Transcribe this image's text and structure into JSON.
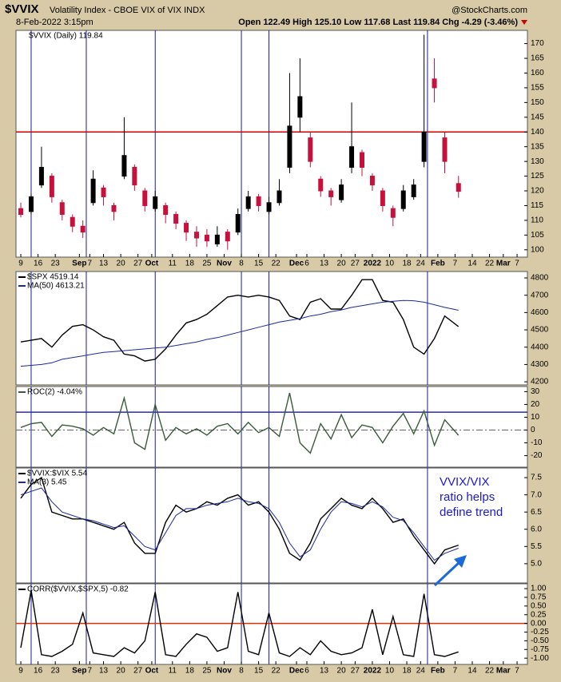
{
  "header": {
    "symbol": "$VVIX",
    "name": "Volatility Index - CBOE VIX of VIX  INDX",
    "source": "@StockCharts.com",
    "date": "8-Feb-2022 3:15pm",
    "quote": "Open 122.49  High 125.10  Low 117.68  Last 119.84  Chg -4.29 (-3.46%)"
  },
  "chart_data": [
    {
      "type": "candlestick",
      "label": "$VVIX (Daily) 119.84",
      "up_color": "#000000",
      "down_color": "#c8103c",
      "x": [
        0,
        3,
        6,
        9,
        12,
        15,
        18,
        21,
        24,
        27,
        30,
        33,
        36,
        39,
        42,
        45,
        48,
        51,
        54,
        57,
        60,
        63,
        66,
        69,
        72,
        75,
        78,
        81,
        84,
        87,
        90,
        93,
        96,
        99,
        102,
        105,
        108,
        111,
        114,
        117,
        120,
        123,
        127
      ],
      "open": [
        114,
        113,
        122,
        125,
        116,
        111,
        108,
        116,
        121,
        115,
        125,
        128,
        120,
        114,
        115,
        112,
        109,
        106,
        105,
        102,
        106,
        106,
        114,
        118,
        113,
        116,
        128,
        145,
        138,
        124,
        120,
        117,
        128,
        133,
        125,
        120,
        114,
        114,
        118,
        130,
        158,
        138,
        122.49
      ],
      "high": [
        116,
        119,
        135,
        126,
        117,
        112,
        110,
        127,
        122,
        116,
        145,
        129,
        121,
        120,
        116,
        113,
        110,
        108,
        107,
        108,
        107,
        114,
        120,
        119,
        118,
        124,
        160,
        165,
        140,
        125,
        121,
        124,
        150,
        134,
        126,
        121,
        115,
        122,
        124,
        173,
        165,
        140,
        125.1
      ],
      "low": [
        111,
        112,
        121,
        116,
        110,
        106,
        104,
        115,
        115,
        110,
        124,
        120,
        113,
        113,
        109,
        107,
        103,
        101,
        101,
        101,
        100,
        105,
        113,
        113,
        112,
        115,
        126,
        140,
        128,
        118,
        115,
        116,
        126,
        125,
        120,
        113,
        108,
        113,
        117,
        128,
        150,
        126,
        117.68
      ],
      "close": [
        112,
        118,
        128,
        118,
        112,
        108,
        106,
        124,
        118,
        113,
        132,
        122,
        115,
        118,
        112,
        109,
        106,
        104,
        103,
        105,
        103,
        112,
        118,
        115,
        116,
        120,
        142,
        152,
        130,
        120,
        118,
        122,
        135,
        128,
        122,
        115,
        111,
        120,
        122,
        140,
        155,
        130,
        119.84
      ],
      "xlim": [
        -1.4,
        147
      ],
      "ylim": [
        97.5,
        174.5
      ],
      "yticks": [
        100,
        105,
        110,
        115,
        120,
        125,
        130,
        135,
        140,
        145,
        150,
        155,
        160,
        165,
        170
      ],
      "xticks": [
        {
          "value": 0,
          "label": "9"
        },
        {
          "value": 5,
          "label": "16"
        },
        {
          "value": 10,
          "label": "23"
        },
        {
          "value": 17,
          "label": "Sep"
        },
        {
          "value": 20,
          "label": "7"
        },
        {
          "value": 24,
          "label": "13"
        },
        {
          "value": 29,
          "label": "20"
        },
        {
          "value": 34,
          "label": "27"
        },
        {
          "value": 38,
          "label": "Oct"
        },
        {
          "value": 44,
          "label": "11"
        },
        {
          "value": 49,
          "label": "18"
        },
        {
          "value": 54,
          "label": "25"
        },
        {
          "value": 59,
          "label": "Nov"
        },
        {
          "value": 64,
          "label": "8"
        },
        {
          "value": 69,
          "label": "15"
        },
        {
          "value": 74,
          "label": "22"
        },
        {
          "value": 80,
          "label": "Dec"
        },
        {
          "value": 83,
          "label": "6"
        },
        {
          "value": 88,
          "label": "13"
        },
        {
          "value": 93,
          "label": "20"
        },
        {
          "value": 97,
          "label": "27"
        },
        {
          "value": 102,
          "label": "2022"
        },
        {
          "value": 107,
          "label": "10"
        },
        {
          "value": 112,
          "label": "18"
        },
        {
          "value": 116,
          "label": "24"
        },
        {
          "value": 121,
          "label": "Feb"
        },
        {
          "value": 126,
          "label": "7"
        },
        {
          "value": 131,
          "label": "14"
        },
        {
          "value": 136,
          "label": "22"
        },
        {
          "value": 140,
          "label": "Mar"
        },
        {
          "value": 144,
          "label": "7"
        }
      ],
      "vlines": [
        3,
        19,
        39,
        64,
        72,
        118
      ],
      "hlines": [
        {
          "value": 140,
          "color": "#cc0000"
        }
      ]
    },
    {
      "type": "line",
      "x": [
        0,
        3,
        6,
        9,
        12,
        15,
        18,
        21,
        24,
        27,
        30,
        33,
        36,
        39,
        42,
        45,
        48,
        51,
        54,
        57,
        60,
        63,
        66,
        69,
        72,
        75,
        78,
        81,
        84,
        87,
        90,
        93,
        96,
        99,
        102,
        105,
        108,
        111,
        114,
        117,
        120,
        123,
        127
      ],
      "series": [
        {
          "name": "$SPX 4519.14",
          "color": "#000000",
          "values": [
            4430,
            4440,
            4450,
            4400,
            4470,
            4520,
            4530,
            4500,
            4460,
            4440,
            4360,
            4350,
            4320,
            4330,
            4390,
            4470,
            4540,
            4560,
            4590,
            4640,
            4690,
            4700,
            4690,
            4700,
            4690,
            4670,
            4580,
            4560,
            4660,
            4680,
            4620,
            4620,
            4700,
            4790,
            4790,
            4670,
            4660,
            4560,
            4400,
            4360,
            4450,
            4580,
            4519.14
          ]
        },
        {
          "name": "MA(50) 4613.21",
          "color": "#1c2a9c",
          "values": [
            4290,
            4295,
            4300,
            4310,
            4330,
            4340,
            4350,
            4360,
            4370,
            4375,
            4380,
            4385,
            4390,
            4395,
            4400,
            4410,
            4420,
            4430,
            4445,
            4455,
            4470,
            4485,
            4500,
            4515,
            4530,
            4545,
            4555,
            4565,
            4580,
            4590,
            4605,
            4615,
            4630,
            4640,
            4650,
            4660,
            4665,
            4670,
            4668,
            4660,
            4645,
            4630,
            4613.21
          ]
        }
      ],
      "xlim": [
        -1.4,
        147
      ],
      "ylim": [
        4182,
        4837
      ],
      "yticks": [
        4200,
        4300,
        4400,
        4500,
        4600,
        4700,
        4800
      ],
      "vlines": [
        3,
        19,
        39,
        64,
        72,
        118
      ],
      "hlines": []
    },
    {
      "type": "line",
      "x": [
        0,
        3,
        6,
        9,
        12,
        15,
        18,
        21,
        24,
        27,
        30,
        33,
        36,
        39,
        42,
        45,
        48,
        51,
        54,
        57,
        60,
        63,
        66,
        69,
        72,
        75,
        78,
        81,
        84,
        87,
        90,
        93,
        96,
        99,
        102,
        105,
        108,
        111,
        114,
        117,
        120,
        123,
        127
      ],
      "series": [
        {
          "name": "ROC(2) -4.04%",
          "color": "#3a5a3a",
          "values": [
            2,
            5,
            6,
            -5,
            4,
            3,
            1,
            -4,
            2,
            -3,
            25,
            -10,
            -15,
            20,
            -8,
            2,
            -3,
            1,
            -4,
            3,
            5,
            -3,
            6,
            -2,
            2,
            -5,
            29,
            -10,
            -18,
            5,
            -7,
            12,
            -6,
            4,
            2,
            -10,
            3,
            13,
            -3,
            15,
            -12,
            8,
            -4.04
          ]
        }
      ],
      "xlim": [
        -1.4,
        147
      ],
      "ylim": [
        -29,
        34
      ],
      "yticks": [
        -20,
        -10,
        0,
        10,
        20,
        30
      ],
      "vlines": [
        3,
        19,
        39,
        64,
        72,
        118
      ],
      "hlines": [
        {
          "value": 14,
          "color": "#2a2ab0"
        },
        {
          "value": 0,
          "color": "#666666",
          "style": "dashdot"
        }
      ]
    },
    {
      "type": "line",
      "x": [
        0,
        3,
        6,
        9,
        12,
        15,
        18,
        21,
        24,
        27,
        30,
        33,
        36,
        39,
        42,
        45,
        48,
        51,
        54,
        57,
        60,
        63,
        66,
        69,
        72,
        75,
        78,
        81,
        84,
        87,
        90,
        93,
        96,
        99,
        102,
        105,
        108,
        111,
        114,
        117,
        120,
        123,
        127
      ],
      "series": [
        {
          "name": "$VVIX:$VIX 5.54",
          "color": "#000000",
          "values": [
            6.9,
            7.3,
            7.5,
            6.5,
            6.4,
            6.3,
            6.3,
            6.2,
            6.1,
            6.0,
            6.2,
            5.6,
            5.3,
            5.3,
            6.2,
            6.7,
            6.5,
            6.6,
            6.8,
            6.7,
            6.9,
            7.0,
            6.7,
            6.8,
            6.5,
            6.0,
            5.3,
            5.1,
            5.6,
            6.3,
            6.6,
            6.9,
            6.7,
            6.6,
            6.9,
            6.6,
            6.2,
            6.3,
            5.8,
            5.4,
            5.0,
            5.4,
            5.54
          ]
        },
        {
          "name": "MA(3) 5.45",
          "color": "#1c2a9c",
          "values": [
            7.0,
            7.1,
            7.2,
            6.8,
            6.5,
            6.4,
            6.3,
            6.25,
            6.15,
            6.05,
            6.1,
            5.8,
            5.5,
            5.4,
            5.9,
            6.4,
            6.6,
            6.6,
            6.7,
            6.75,
            6.8,
            6.9,
            6.8,
            6.75,
            6.6,
            6.2,
            5.6,
            5.2,
            5.4,
            6.0,
            6.5,
            6.8,
            6.75,
            6.65,
            6.8,
            6.65,
            6.35,
            6.25,
            5.9,
            5.5,
            5.1,
            5.3,
            5.45
          ]
        }
      ],
      "annotation": [
        "VVIX/VIX",
        "ratio helps",
        "define trend"
      ],
      "annotation_color": "#1a1ad0",
      "xlim": [
        -1.4,
        147
      ],
      "ylim": [
        4.44,
        7.78
      ],
      "yticks": [
        {
          "value": 5,
          "label": "5.0"
        },
        {
          "value": 5.5,
          "label": "5.5"
        },
        {
          "value": 6,
          "label": "6.0"
        },
        {
          "value": 6.5,
          "label": "6.5"
        },
        {
          "value": 7,
          "label": "7.0"
        },
        {
          "value": 7.5,
          "label": "7.5"
        }
      ],
      "vlines": [
        3,
        19,
        39,
        64,
        72,
        118
      ],
      "hlines": []
    },
    {
      "type": "line",
      "x": [
        0,
        3,
        6,
        9,
        12,
        15,
        18,
        21,
        24,
        27,
        30,
        33,
        36,
        39,
        42,
        45,
        48,
        51,
        54,
        57,
        60,
        63,
        66,
        69,
        72,
        75,
        78,
        81,
        84,
        87,
        90,
        93,
        96,
        99,
        102,
        105,
        108,
        111,
        114,
        117,
        120,
        123,
        127
      ],
      "series": [
        {
          "name": "CORR($VVIX,$SPX,5) -0.82",
          "color": "#000000",
          "values": [
            -0.7,
            0.95,
            -0.9,
            -0.95,
            -0.8,
            -0.6,
            0.3,
            -0.85,
            -0.9,
            -0.95,
            -0.7,
            -0.85,
            -0.5,
            0.9,
            -0.9,
            -0.95,
            -0.6,
            -0.3,
            -0.4,
            -0.8,
            -0.7,
            0.9,
            -0.8,
            -0.9,
            0.3,
            -0.85,
            -0.95,
            -0.7,
            -0.9,
            -0.5,
            -0.8,
            -0.9,
            -0.85,
            -0.7,
            0.4,
            -0.9,
            0.2,
            -0.9,
            -0.95,
            0.85,
            -0.9,
            -0.95,
            -0.82
          ]
        }
      ],
      "xlim": [
        -1.4,
        147
      ],
      "ylim": [
        -1.18,
        1.14
      ],
      "yticks": [
        {
          "value": 1,
          "label": "1.00"
        },
        {
          "value": 0.75,
          "label": "0.75"
        },
        {
          "value": 0.5,
          "label": "0.50"
        },
        {
          "value": 0.25,
          "label": "0.25"
        },
        {
          "value": 0,
          "label": "0.00"
        },
        {
          "value": -0.25,
          "label": "-0.25"
        },
        {
          "value": -0.5,
          "label": "-0.50"
        },
        {
          "value": -0.75,
          "label": "-0.75"
        },
        {
          "value": -1,
          "label": "-1.00"
        }
      ],
      "xticks": [
        {
          "value": 0,
          "label": "9"
        },
        {
          "value": 5,
          "label": "16"
        },
        {
          "value": 10,
          "label": "23"
        },
        {
          "value": 17,
          "label": "Sep"
        },
        {
          "value": 20,
          "label": "7"
        },
        {
          "value": 24,
          "label": "13"
        },
        {
          "value": 29,
          "label": "20"
        },
        {
          "value": 34,
          "label": "27"
        },
        {
          "value": 38,
          "label": "Oct"
        },
        {
          "value": 44,
          "label": "11"
        },
        {
          "value": 49,
          "label": "18"
        },
        {
          "value": 54,
          "label": "25"
        },
        {
          "value": 59,
          "label": "Nov"
        },
        {
          "value": 64,
          "label": "8"
        },
        {
          "value": 69,
          "label": "15"
        },
        {
          "value": 74,
          "label": "22"
        },
        {
          "value": 80,
          "label": "Dec"
        },
        {
          "value": 83,
          "label": "6"
        },
        {
          "value": 88,
          "label": "13"
        },
        {
          "value": 93,
          "label": "20"
        },
        {
          "value": 97,
          "label": "27"
        },
        {
          "value": 102,
          "label": "2022"
        },
        {
          "value": 107,
          "label": "10"
        },
        {
          "value": 112,
          "label": "18"
        },
        {
          "value": 116,
          "label": "24"
        },
        {
          "value": 121,
          "label": "Feb"
        },
        {
          "value": 126,
          "label": "7"
        },
        {
          "value": 131,
          "label": "14"
        },
        {
          "value": 136,
          "label": "22"
        },
        {
          "value": 140,
          "label": "Mar"
        },
        {
          "value": 144,
          "label": "7"
        }
      ],
      "vlines": [
        3,
        19,
        39,
        64,
        72,
        118
      ],
      "hlines": [
        {
          "value": 0,
          "color": "#e03000"
        }
      ]
    }
  ]
}
